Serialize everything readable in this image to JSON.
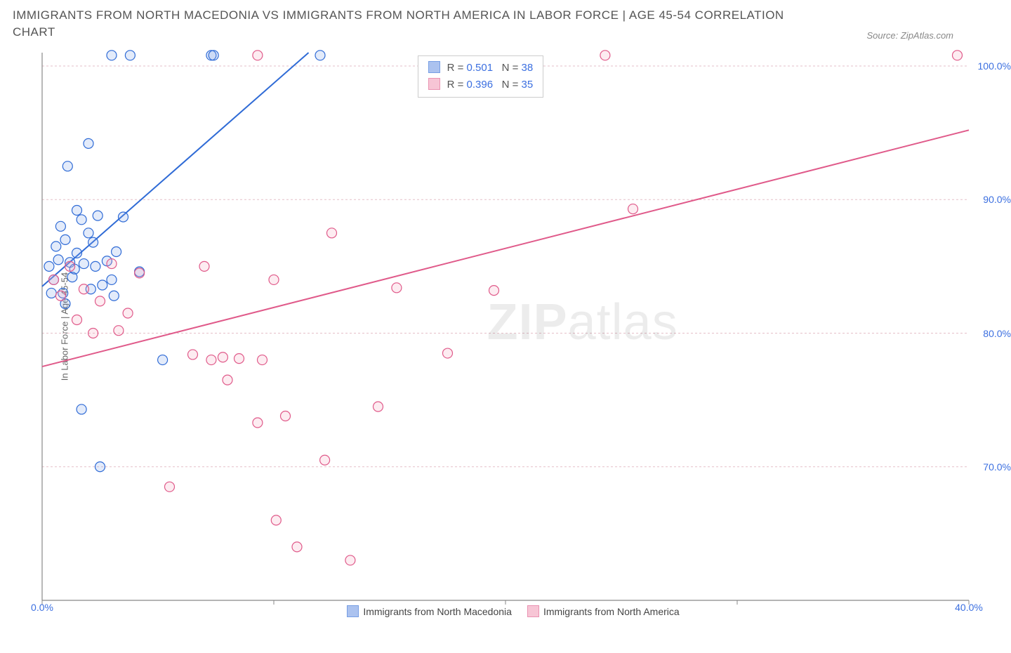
{
  "title": "IMMIGRANTS FROM NORTH MACEDONIA VS IMMIGRANTS FROM NORTH AMERICA IN LABOR FORCE | AGE 45-54 CORRELATION CHART",
  "source": "Source: ZipAtlas.com",
  "watermark_bold": "ZIP",
  "watermark_rest": "atlas",
  "chart": {
    "type": "scatter",
    "ylabel": "In Labor Force | Age 45-54",
    "background_color": "#ffffff",
    "grid_color": "#e5bfc8",
    "grid_dash": "3,3",
    "axis_color": "#888888",
    "tick_label_color": "#3b6fe0",
    "xlim": [
      0,
      40
    ],
    "ylim": [
      60,
      101
    ],
    "xticks": [
      0,
      10,
      20,
      30,
      40
    ],
    "xtick_labels": [
      "0.0%",
      "",
      "",
      "",
      "40.0%"
    ],
    "yticks": [
      70,
      80,
      90,
      100
    ],
    "ytick_labels": [
      "70.0%",
      "80.0%",
      "90.0%",
      "100.0%"
    ],
    "marker_radius": 7,
    "marker_stroke_width": 1.2,
    "marker_fill_opacity": 0.22,
    "line_width": 2,
    "series": [
      {
        "name": "Immigrants from North Macedonia",
        "color_stroke": "#2f6bd6",
        "color_fill": "#7fa3e8",
        "trend": {
          "x1": 0,
          "y1": 83.5,
          "x2": 11.5,
          "y2": 101
        },
        "points": [
          [
            0.3,
            85.0
          ],
          [
            0.5,
            84.0
          ],
          [
            0.6,
            86.5
          ],
          [
            0.7,
            85.5
          ],
          [
            0.8,
            88.0
          ],
          [
            0.9,
            83.0
          ],
          [
            1.0,
            87.0
          ],
          [
            1.1,
            92.5
          ],
          [
            1.2,
            85.3
          ],
          [
            1.3,
            84.2
          ],
          [
            1.5,
            89.2
          ],
          [
            1.5,
            86.0
          ],
          [
            1.7,
            88.5
          ],
          [
            1.8,
            85.2
          ],
          [
            2.0,
            87.5
          ],
          [
            2.0,
            94.2
          ],
          [
            2.1,
            83.3
          ],
          [
            2.2,
            86.8
          ],
          [
            2.3,
            85.0
          ],
          [
            2.4,
            88.8
          ],
          [
            2.6,
            83.6
          ],
          [
            2.8,
            85.4
          ],
          [
            3.0,
            84.0
          ],
          [
            3.1,
            82.8
          ],
          [
            3.2,
            86.1
          ],
          [
            3.5,
            88.7
          ],
          [
            3.8,
            100.8
          ],
          [
            4.2,
            84.6
          ],
          [
            1.7,
            74.3
          ],
          [
            2.5,
            70.0
          ],
          [
            5.2,
            78.0
          ],
          [
            7.3,
            100.8
          ],
          [
            7.4,
            100.8
          ],
          [
            3.0,
            100.8
          ],
          [
            12.0,
            100.8
          ],
          [
            0.4,
            83.0
          ],
          [
            1.0,
            82.2
          ],
          [
            1.4,
            84.8
          ]
        ]
      },
      {
        "name": "Immigrants from North America",
        "color_stroke": "#e05a8a",
        "color_fill": "#f4a7c0",
        "trend": {
          "x1": 0,
          "y1": 77.5,
          "x2": 40,
          "y2": 95.2
        },
        "points": [
          [
            0.5,
            84.0
          ],
          [
            0.8,
            82.8
          ],
          [
            1.2,
            85.0
          ],
          [
            1.5,
            81.0
          ],
          [
            1.8,
            83.3
          ],
          [
            2.2,
            80.0
          ],
          [
            2.5,
            82.4
          ],
          [
            3.0,
            85.2
          ],
          [
            3.3,
            80.2
          ],
          [
            4.2,
            84.5
          ],
          [
            5.5,
            68.5
          ],
          [
            6.5,
            78.4
          ],
          [
            7.0,
            85.0
          ],
          [
            7.3,
            78.0
          ],
          [
            7.8,
            78.2
          ],
          [
            8.0,
            76.5
          ],
          [
            8.5,
            78.1
          ],
          [
            9.3,
            73.3
          ],
          [
            9.3,
            100.8
          ],
          [
            10.1,
            66.0
          ],
          [
            9.5,
            78.0
          ],
          [
            10.5,
            73.8
          ],
          [
            11.0,
            64.0
          ],
          [
            12.2,
            70.5
          ],
          [
            12.5,
            87.5
          ],
          [
            13.3,
            63.0
          ],
          [
            14.5,
            74.5
          ],
          [
            15.3,
            83.4
          ],
          [
            17.5,
            78.5
          ],
          [
            19.5,
            83.2
          ],
          [
            24.3,
            100.8
          ],
          [
            25.5,
            89.3
          ],
          [
            39.5,
            100.8
          ],
          [
            3.7,
            81.5
          ],
          [
            10.0,
            84.0
          ]
        ]
      }
    ],
    "corr_box": {
      "left_pct": 40.5,
      "top_pct": 0.5,
      "rows": [
        {
          "swatch_fill": "#7fa3e8",
          "swatch_stroke": "#2f6bd6",
          "r": "0.501",
          "n": "38"
        },
        {
          "swatch_fill": "#f4a7c0",
          "swatch_stroke": "#e05a8a",
          "r": "0.396",
          "n": "35"
        }
      ],
      "r_label": "R = ",
      "n_label": "N = "
    }
  }
}
